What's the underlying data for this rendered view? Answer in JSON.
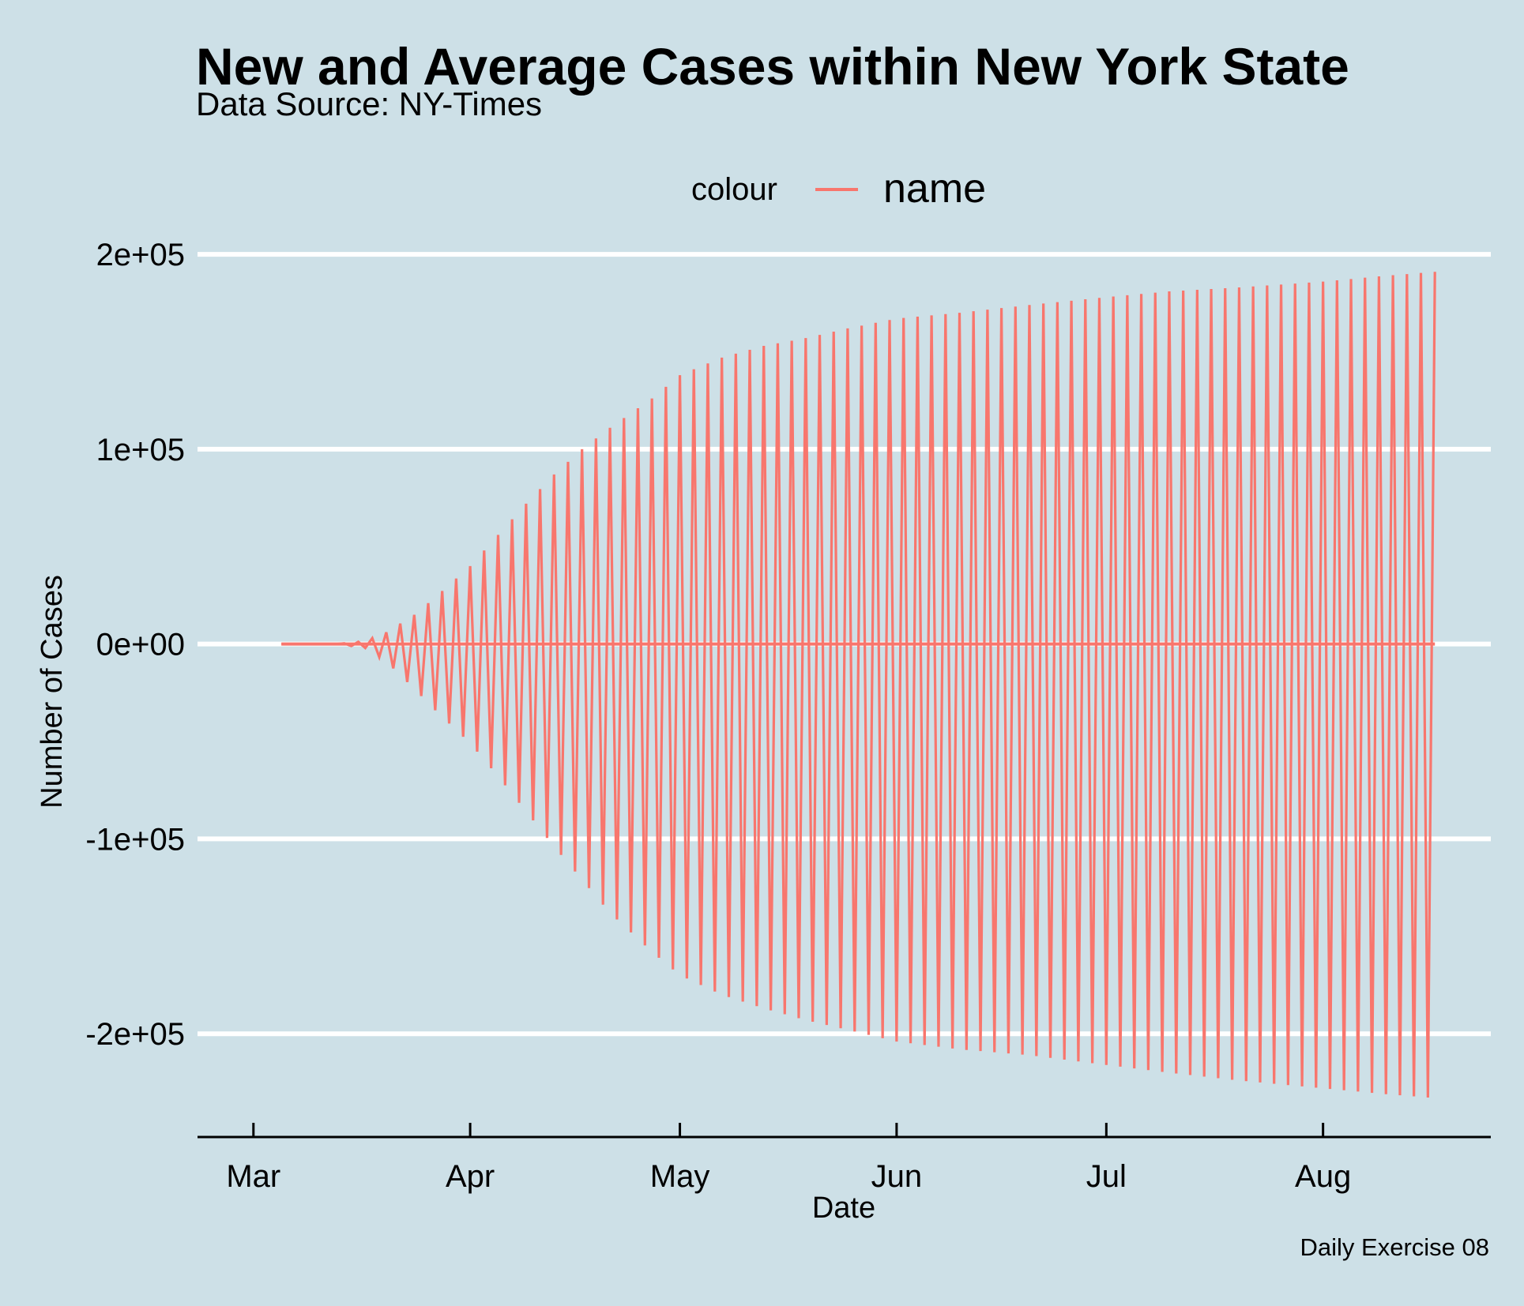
{
  "chart_data": {
    "type": "line",
    "title": "New and Average Cases within New York State",
    "subtitle": "Data Source: NY-Times",
    "caption": "Daily Exercise 08",
    "xlabel": "Date",
    "ylabel": "Number of Cases",
    "legend": {
      "title": "colour",
      "entries": [
        "name"
      ],
      "placement": "top"
    },
    "x_ticks": [
      "Mar",
      "Apr",
      "May",
      "Jun",
      "Jul",
      "Aug"
    ],
    "x_tick_dates": [
      "2020-03-01",
      "2020-04-01",
      "2020-05-01",
      "2020-06-01",
      "2020-07-01",
      "2020-08-01"
    ],
    "y_ticks": [
      "-2e+05",
      "-1e+05",
      "0e+00",
      "1e+05",
      "2e+05"
    ],
    "y_tick_values": [
      -200000,
      -100000,
      0,
      100000,
      200000
    ],
    "xlim": [
      "2020-02-22",
      "2020-08-25"
    ],
    "ylim": [
      -253000,
      213000
    ],
    "grid": "horizontal major lines",
    "line_color": "#f8766d",
    "background": "#cde0e7",
    "series_envelope": {
      "x": [
        "2020-03-05",
        "2020-03-13",
        "2020-03-17",
        "2020-03-20",
        "2020-03-24",
        "2020-03-27",
        "2020-04-01",
        "2020-04-05",
        "2020-04-09",
        "2020-04-13",
        "2020-04-17",
        "2020-04-21",
        "2020-04-27",
        "2020-05-01",
        "2020-05-07",
        "2020-05-13",
        "2020-05-19",
        "2020-05-25",
        "2020-06-01",
        "2020-06-10",
        "2020-06-20",
        "2020-07-01",
        "2020-07-10",
        "2020-07-20",
        "2020-08-01",
        "2020-08-10",
        "2020-08-17"
      ],
      "upper": [
        0,
        0,
        1500,
        6000,
        15000,
        24000,
        40000,
        56000,
        72000,
        87000,
        100000,
        111000,
        126000,
        138000,
        147000,
        153000,
        157000,
        162000,
        167000,
        170000,
        174000,
        178000,
        181000,
        183000,
        186000,
        189000,
        191000
      ],
      "lower": [
        0,
        0,
        -2000,
        -9000,
        -23000,
        -34000,
        -51000,
        -68000,
        -86000,
        -104000,
        -121000,
        -138000,
        -158000,
        -170000,
        -180000,
        -187000,
        -193000,
        -198000,
        -204000,
        -208000,
        -211000,
        -216000,
        -220000,
        -224000,
        -228000,
        -231000,
        -233000
      ]
    }
  }
}
